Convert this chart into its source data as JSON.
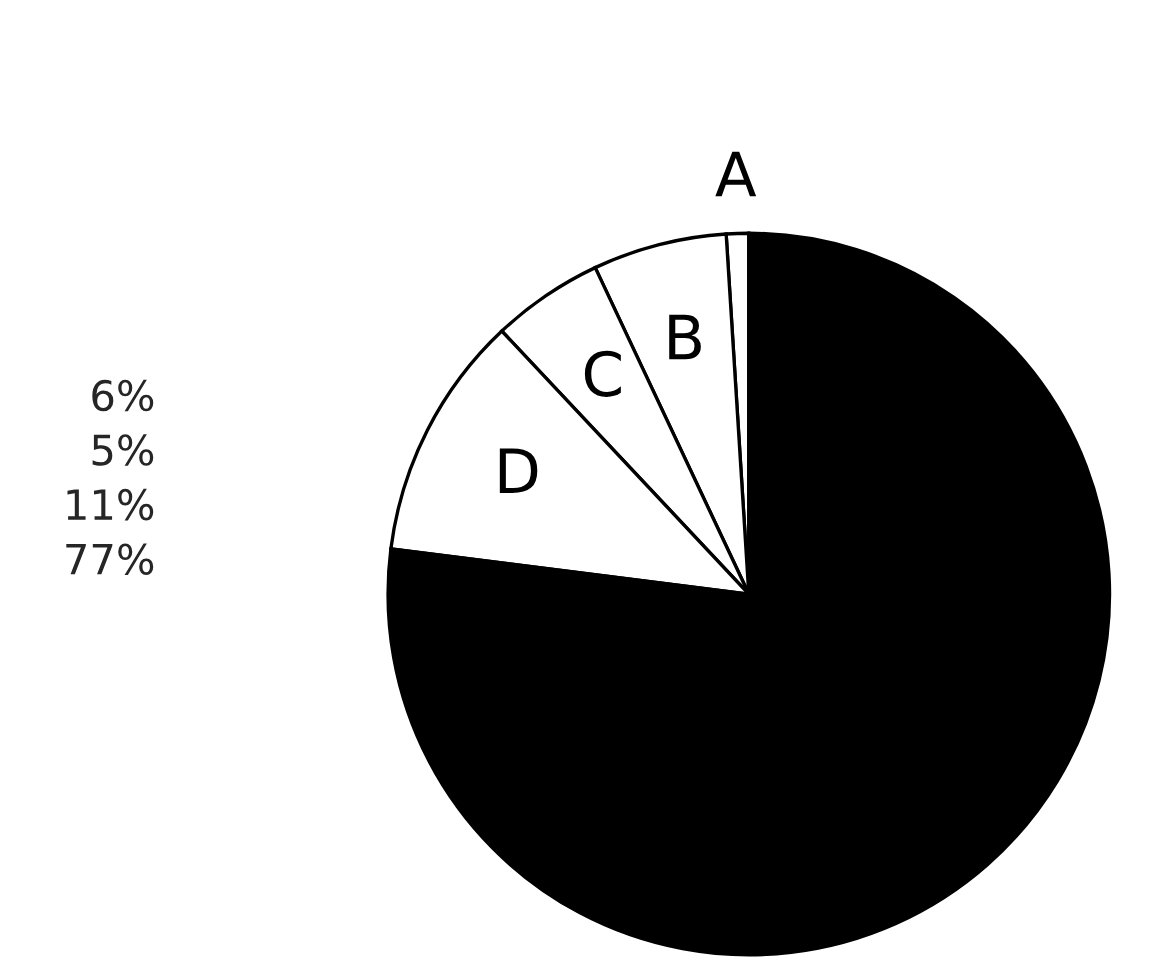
{
  "chart_data": {
    "type": "pie",
    "categories": [
      "A",
      "B",
      "C",
      "D",
      null
    ],
    "values": [
      1,
      6,
      5,
      11,
      77
    ],
    "colors": [
      "#ffffff",
      "#ffffff",
      "#ffffff",
      "#ffffff",
      "#000000"
    ],
    "annotations": [
      "6%\n5%\n11%\n77%"
    ],
    "legend": false
  }
}
